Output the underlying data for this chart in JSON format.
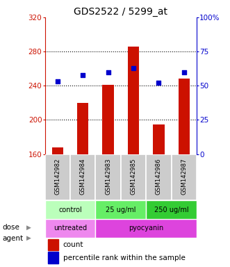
{
  "title": "GDS2522 / 5299_at",
  "categories": [
    "GSM142982",
    "GSM142984",
    "GSM142983",
    "GSM142985",
    "GSM142986",
    "GSM142987"
  ],
  "bar_values": [
    168,
    220,
    241,
    286,
    195,
    248
  ],
  "bar_bottom": 160,
  "bar_color": "#cc1100",
  "dot_values": [
    53,
    58,
    60,
    63,
    52,
    60
  ],
  "dot_color": "#0000cc",
  "ylim_left": [
    160,
    320
  ],
  "ylim_right": [
    0,
    100
  ],
  "yticks_left": [
    160,
    200,
    240,
    280,
    320
  ],
  "yticks_right": [
    0,
    25,
    50,
    75,
    100
  ],
  "ytick_labels_right": [
    "0",
    "25",
    "50",
    "75",
    "100%"
  ],
  "dose_groups": [
    {
      "label": "control",
      "span": [
        0,
        2
      ],
      "color": "#bbffbb"
    },
    {
      "label": "25 ug/ml",
      "span": [
        2,
        4
      ],
      "color": "#66ee66"
    },
    {
      "label": "250 ug/ml",
      "span": [
        4,
        6
      ],
      "color": "#33cc33"
    }
  ],
  "agent_groups": [
    {
      "label": "untreated",
      "span": [
        0,
        2
      ],
      "color": "#ee88ee"
    },
    {
      "label": "pyocyanin",
      "span": [
        2,
        6
      ],
      "color": "#dd44dd"
    }
  ],
  "dose_label": "dose",
  "agent_label": "agent",
  "legend_count": "count",
  "legend_pct": "percentile rank within the sample",
  "title_fontsize": 10,
  "axis_label_color_left": "#cc1100",
  "axis_label_color_right": "#0000cc",
  "bg_color": "#ffffff",
  "plot_bg": "#ffffff",
  "sample_label_bg": "#cccccc",
  "grid_yticks": [
    200,
    240,
    280
  ]
}
